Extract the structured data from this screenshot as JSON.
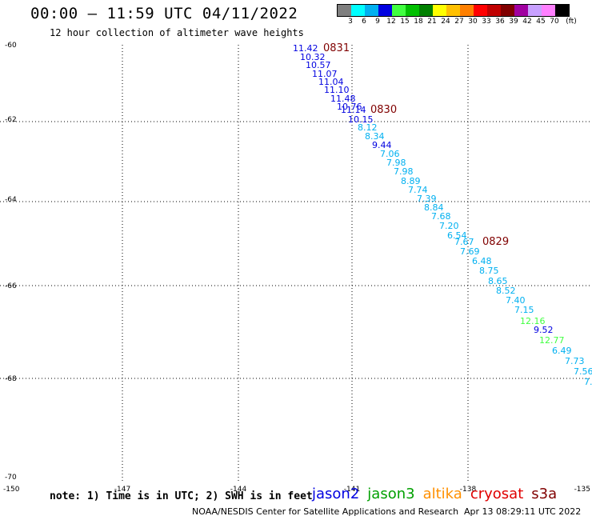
{
  "header": {
    "title": "00:00 – 11:59 UTC 04/11/2022",
    "subtitle": "12 hour collection of altimeter wave heights"
  },
  "legend": {
    "unit": "(ft)",
    "ticks": [
      "3",
      "6",
      "9",
      "12",
      "15",
      "18",
      "21",
      "24",
      "27",
      "30",
      "33",
      "36",
      "39",
      "42",
      "45",
      "70"
    ],
    "colors": [
      "#7f7f7f",
      "#00ffff",
      "#00b0f0",
      "#0000e0",
      "#40ff40",
      "#00c000",
      "#008000",
      "#ffff00",
      "#ffc000",
      "#ff8000",
      "#ff0000",
      "#c00000",
      "#800000",
      "#a000a0",
      "#c8a0ff",
      "#ff80ff",
      "#000000"
    ]
  },
  "axes": {
    "x_labels": [
      "-150",
      "-147",
      "-144",
      "-141",
      "-138",
      "-135"
    ],
    "y_labels": [
      "-60",
      "-62",
      "-64",
      "-66",
      "-68",
      "-70"
    ]
  },
  "passes": [
    {
      "label": "0831",
      "color": "#800000"
    },
    {
      "label": "0830",
      "color": "#800000"
    },
    {
      "label": "0829",
      "color": "#800000"
    }
  ],
  "readings": [
    {
      "v": "11.42",
      "c": "#0000e0"
    },
    {
      "v": "10.32",
      "c": "#0000e0"
    },
    {
      "v": "10.57",
      "c": "#0000e0"
    },
    {
      "v": "11.07",
      "c": "#0000e0"
    },
    {
      "v": "11.04",
      "c": "#0000e0"
    },
    {
      "v": "11.10",
      "c": "#0000e0"
    },
    {
      "v": "11.48",
      "c": "#0000e0"
    },
    {
      "v": "10.76",
      "c": "#0000e0"
    },
    {
      "v": "11.14",
      "c": "#0000e0"
    },
    {
      "v": "10.15",
      "c": "#0000e0"
    },
    {
      "v": "8.12",
      "c": "#00b0f0"
    },
    {
      "v": "8.34",
      "c": "#00b0f0"
    },
    {
      "v": "9.44",
      "c": "#0000e0"
    },
    {
      "v": "7.06",
      "c": "#00b0f0"
    },
    {
      "v": "7.98",
      "c": "#00b0f0"
    },
    {
      "v": "7.98",
      "c": "#00b0f0"
    },
    {
      "v": "8.89",
      "c": "#00b0f0"
    },
    {
      "v": "7.74",
      "c": "#00b0f0"
    },
    {
      "v": "7.39",
      "c": "#00b0f0"
    },
    {
      "v": "8.84",
      "c": "#00b0f0"
    },
    {
      "v": "7.68",
      "c": "#00b0f0"
    },
    {
      "v": "7.20",
      "c": "#00b0f0"
    },
    {
      "v": "6.54",
      "c": "#00b0f0"
    },
    {
      "v": "7.67",
      "c": "#00b0f0"
    },
    {
      "v": "7.69",
      "c": "#00b0f0"
    },
    {
      "v": "6.48",
      "c": "#00b0f0"
    },
    {
      "v": "8.75",
      "c": "#00b0f0"
    },
    {
      "v": "8.65",
      "c": "#00b0f0"
    },
    {
      "v": "8.52",
      "c": "#00b0f0"
    },
    {
      "v": "7.40",
      "c": "#00b0f0"
    },
    {
      "v": "7.15",
      "c": "#00b0f0"
    },
    {
      "v": "12.16",
      "c": "#40ff40"
    },
    {
      "v": "9.52",
      "c": "#0000e0"
    },
    {
      "v": "12.77",
      "c": "#40ff40"
    },
    {
      "v": "6.49",
      "c": "#00b0f0"
    },
    {
      "v": "7.73",
      "c": "#00b0f0"
    },
    {
      "v": "7.56",
      "c": "#00b0f0"
    },
    {
      "v": "7.",
      "c": "#00b0f0"
    }
  ],
  "footer": {
    "note": "note: 1) Time is in UTC; 2) SWH is in feet",
    "satellites": [
      {
        "name": "jason2",
        "color": "#0000e0"
      },
      {
        "name": "jason3",
        "color": "#00a000"
      },
      {
        "name": "altika",
        "color": "#ff9000"
      },
      {
        "name": "cryosat",
        "color": "#e00000"
      },
      {
        "name": "s3a",
        "color": "#800000"
      }
    ],
    "credit": "NOAA/NESDIS Center for Satellite Applications and Research",
    "generated": "Apr 13 08:29:11 UTC 2022"
  }
}
